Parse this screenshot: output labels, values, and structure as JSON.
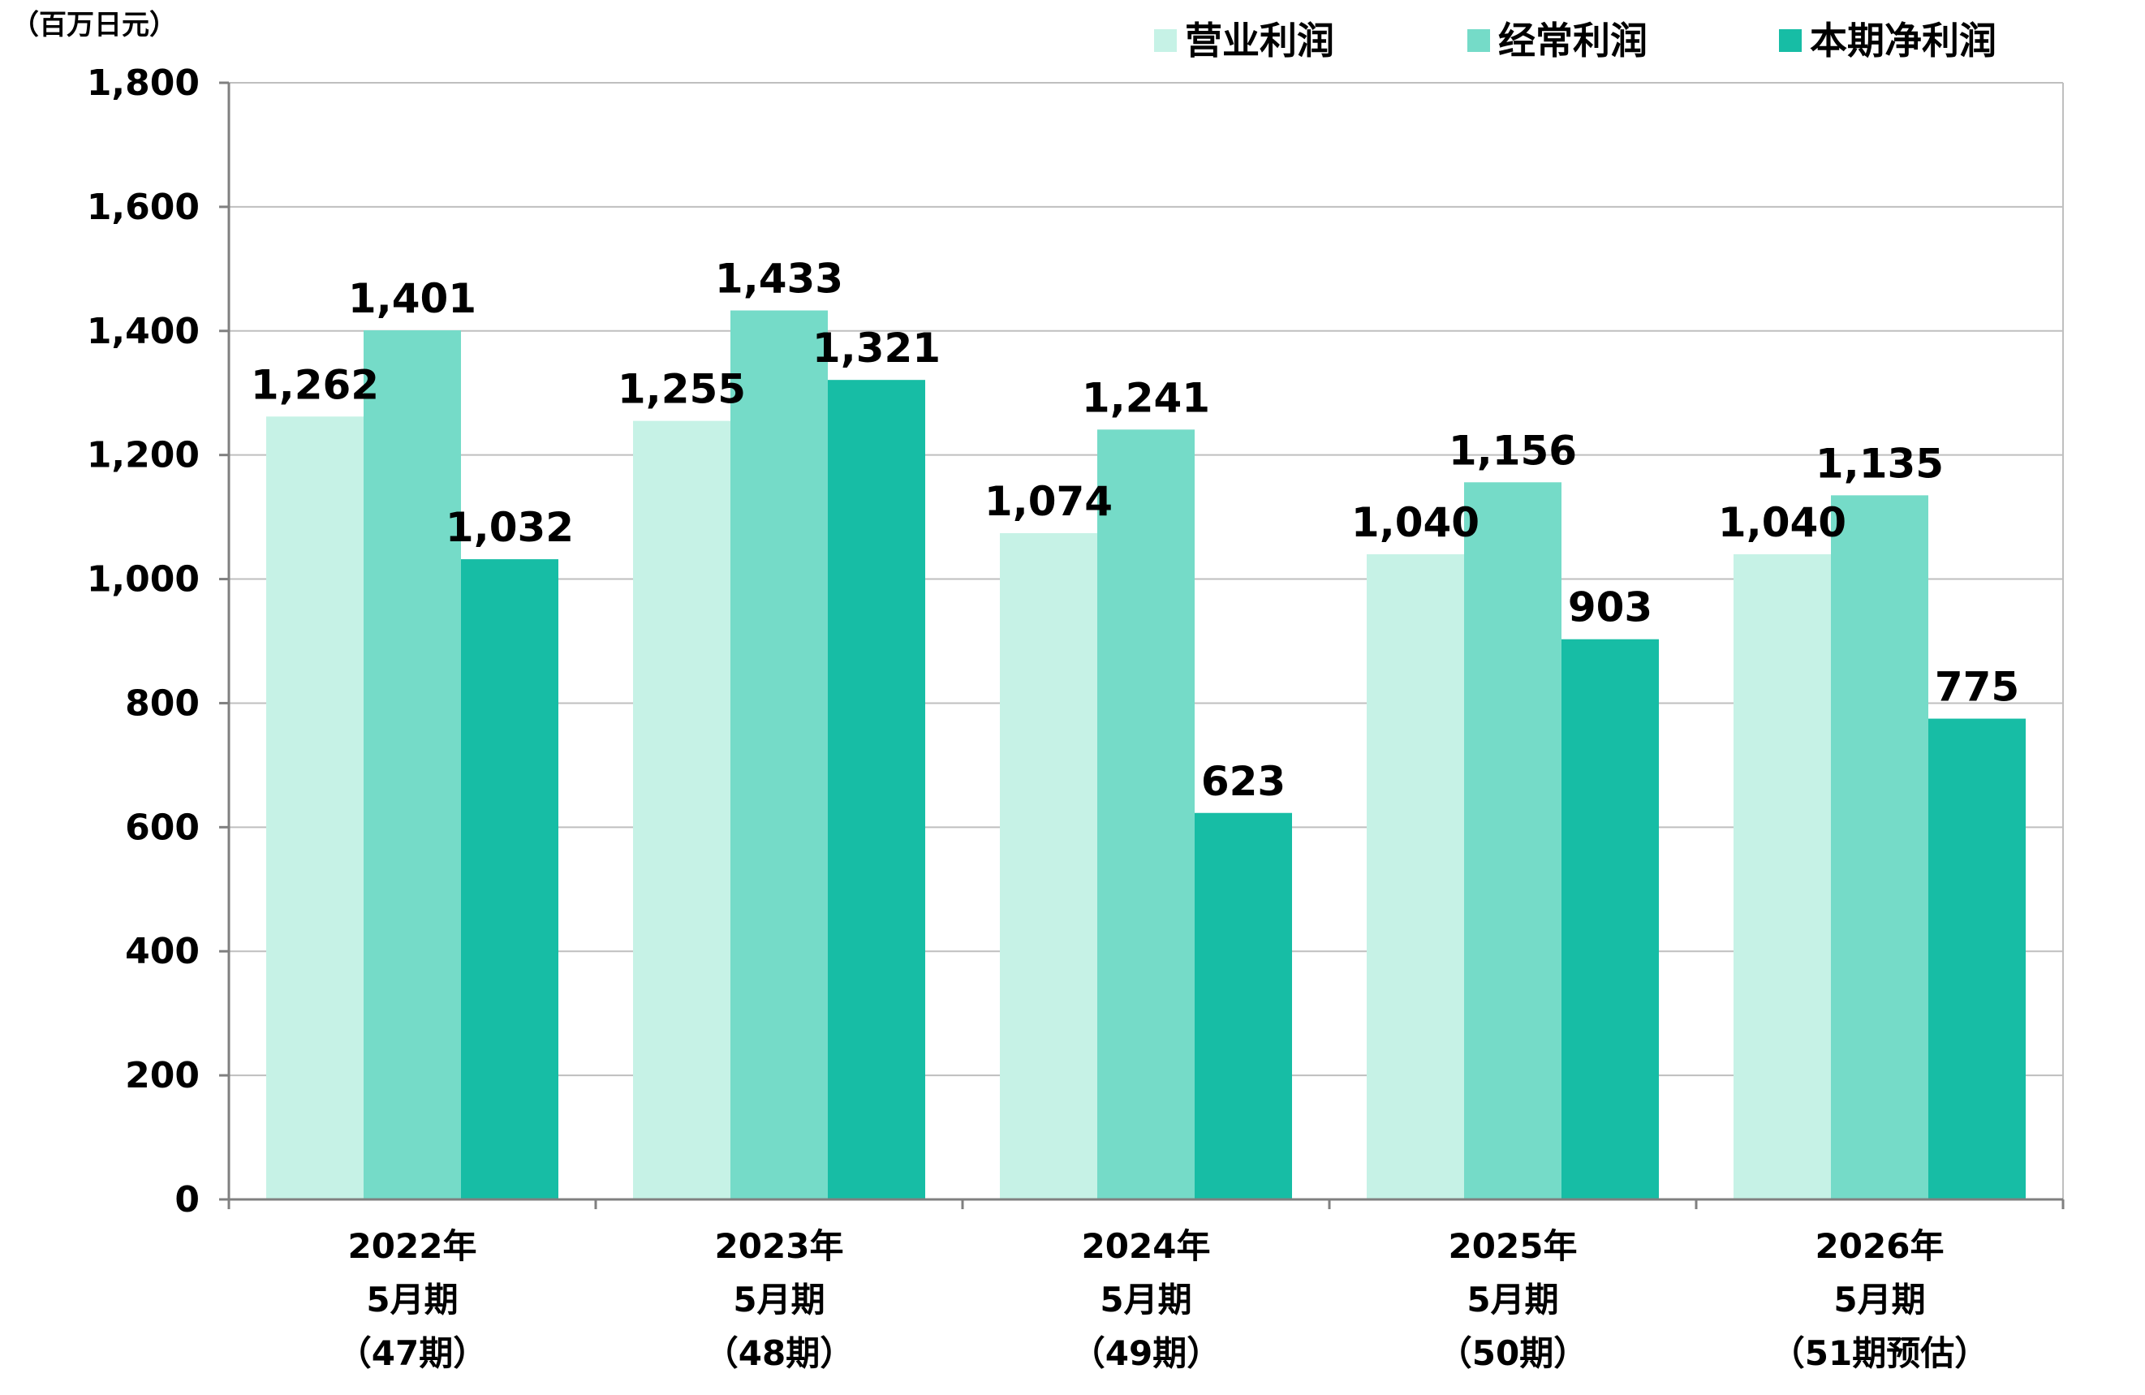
{
  "chart_data": {
    "type": "bar",
    "unit_label": "（百万日元）",
    "categories": [
      [
        "2022年",
        "5月期",
        "（47期）"
      ],
      [
        "2023年",
        "5月期",
        "（48期）"
      ],
      [
        "2024年",
        "5月期",
        "（49期）"
      ],
      [
        "2025年",
        "5月期",
        "（50期）"
      ],
      [
        "2026年",
        "5月期",
        "（51期预估）"
      ]
    ],
    "series": [
      {
        "name": "营业利润",
        "color": "#c6f2e6",
        "values": [
          1262,
          1255,
          1074,
          1040,
          1040
        ],
        "labels": [
          "1,262",
          "1,255",
          "1,074",
          "1,040",
          "1,040"
        ]
      },
      {
        "name": "经常利润",
        "color": "#75dbc8",
        "values": [
          1401,
          1433,
          1241,
          1156,
          1135
        ],
        "labels": [
          "1,401",
          "1,433",
          "1,241",
          "1,156",
          "1,135"
        ]
      },
      {
        "name": "本期净利润",
        "color": "#17bda5",
        "values": [
          1032,
          1321,
          623,
          903,
          775
        ],
        "labels": [
          "1,032",
          "1,321",
          "623",
          "903",
          "775"
        ]
      }
    ],
    "ylim": [
      0,
      1800
    ],
    "yticks": [
      0,
      200,
      400,
      600,
      800,
      1000,
      1200,
      1400,
      1600,
      1800
    ],
    "ytick_labels": [
      "0",
      "200",
      "400",
      "600",
      "800",
      "1,000",
      "1,200",
      "1,400",
      "1,600",
      "1,800"
    ],
    "grid": true,
    "legend_position": "top-right",
    "gridline_color": "#bfbfbf",
    "axis_color": "#808080"
  }
}
